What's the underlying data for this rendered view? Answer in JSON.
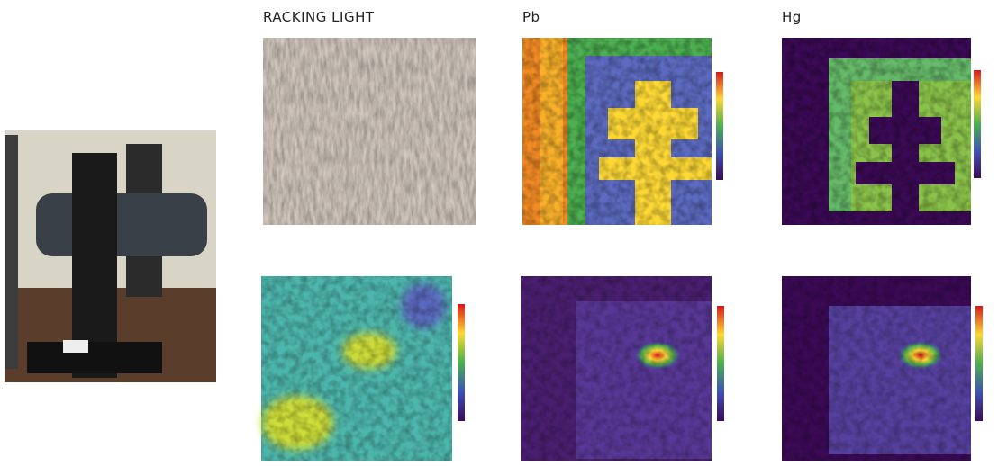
{
  "panels": [
    {
      "label": "RACKING LIGHT"
    },
    {
      "label": "Pb"
    },
    {
      "label": "Hg"
    }
  ]
}
